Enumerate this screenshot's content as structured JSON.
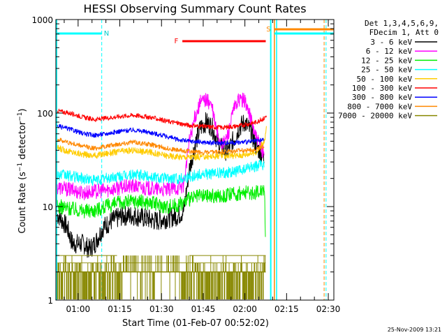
{
  "chart_data": {
    "type": "line",
    "title": "HESSI Observing Summary Count Rates",
    "xlabel": "Start Time (01-Feb-07 00:52:02)",
    "ylabel": "Count Rate (s⁻¹ detector⁻¹)",
    "y_scale": "log",
    "ylim": [
      1,
      1000
    ],
    "xlim_minutes": [
      52,
      152
    ],
    "x_ticks": [
      {
        "label": "01:00",
        "min": 60
      },
      {
        "label": "01:15",
        "min": 75
      },
      {
        "label": "01:30",
        "min": 90
      },
      {
        "label": "01:45",
        "min": 105
      },
      {
        "label": "02:00",
        "min": 120
      },
      {
        "label": "02:15",
        "min": 135
      },
      {
        "label": "02:30",
        "min": 150
      }
    ],
    "y_ticks": [
      {
        "label": "1",
        "v": 1
      },
      {
        "label": "10",
        "v": 10
      },
      {
        "label": "100",
        "v": 100
      },
      {
        "label": "1000",
        "v": 1000
      }
    ],
    "legend_header": [
      "Det 1,3,4,5,6,9,",
      "FDecim 1, Att 0"
    ],
    "series": [
      {
        "name": "3 - 6 keV",
        "color": "#000000",
        "points": [
          [
            53,
            8
          ],
          [
            56,
            6
          ],
          [
            58,
            4
          ],
          [
            62,
            4
          ],
          [
            64,
            3.5
          ],
          [
            66,
            4
          ],
          [
            69,
            6
          ],
          [
            72,
            7
          ],
          [
            76,
            8
          ],
          [
            80,
            8
          ],
          [
            84,
            7.5
          ],
          [
            88,
            7
          ],
          [
            92,
            7.5
          ],
          [
            96,
            8
          ],
          [
            98,
            9
          ],
          [
            100,
            25
          ],
          [
            102,
            45
          ],
          [
            104,
            70
          ],
          [
            106,
            80
          ],
          [
            108,
            72
          ],
          [
            110,
            52
          ],
          [
            112,
            40
          ],
          [
            114,
            40
          ],
          [
            116,
            52
          ],
          [
            118,
            70
          ],
          [
            120,
            80
          ],
          [
            122,
            64
          ],
          [
            124,
            45
          ],
          [
            126,
            36
          ],
          [
            127,
            32
          ]
        ]
      },
      {
        "name": "6 - 12 keV",
        "color": "#ff00ff",
        "points": [
          [
            53,
            16
          ],
          [
            58,
            15
          ],
          [
            62,
            14
          ],
          [
            66,
            14.5
          ],
          [
            70,
            15
          ],
          [
            75,
            16
          ],
          [
            80,
            16.5
          ],
          [
            86,
            15.5
          ],
          [
            92,
            15
          ],
          [
            96,
            16
          ],
          [
            98,
            17
          ],
          [
            100,
            50
          ],
          [
            102,
            90
          ],
          [
            104,
            130
          ],
          [
            106,
            140
          ],
          [
            108,
            120
          ],
          [
            110,
            60
          ],
          [
            112,
            45
          ],
          [
            114,
            60
          ],
          [
            116,
            110
          ],
          [
            118,
            140
          ],
          [
            120,
            135
          ],
          [
            122,
            90
          ],
          [
            124,
            55
          ],
          [
            126,
            40
          ],
          [
            127,
            38
          ]
        ]
      },
      {
        "name": "12 - 25 keV",
        "color": "#00ee00",
        "points": [
          [
            53,
            10
          ],
          [
            58,
            9.5
          ],
          [
            62,
            9
          ],
          [
            66,
            9.2
          ],
          [
            70,
            10
          ],
          [
            75,
            11
          ],
          [
            80,
            11.5
          ],
          [
            86,
            11
          ],
          [
            92,
            10
          ],
          [
            96,
            10.5
          ],
          [
            100,
            12
          ],
          [
            104,
            13
          ],
          [
            108,
            13
          ],
          [
            112,
            13
          ],
          [
            116,
            13.5
          ],
          [
            120,
            14
          ],
          [
            124,
            14
          ],
          [
            127,
            16
          ],
          [
            127.5,
            4
          ]
        ]
      },
      {
        "name": "25 - 50 keV",
        "color": "#00ffff",
        "points": [
          [
            53,
            22
          ],
          [
            58,
            21
          ],
          [
            62,
            20
          ],
          [
            66,
            19
          ],
          [
            70,
            20
          ],
          [
            75,
            21
          ],
          [
            80,
            22
          ],
          [
            86,
            21
          ],
          [
            92,
            20
          ],
          [
            96,
            20
          ],
          [
            100,
            21
          ],
          [
            104,
            22
          ],
          [
            108,
            22.5
          ],
          [
            112,
            23
          ],
          [
            116,
            23.5
          ],
          [
            120,
            25
          ],
          [
            124,
            27
          ],
          [
            127,
            28
          ]
        ]
      },
      {
        "name": "50 - 100 keV",
        "color": "#ffcc00",
        "points": [
          [
            53,
            42
          ],
          [
            58,
            38
          ],
          [
            62,
            36
          ],
          [
            66,
            35
          ],
          [
            70,
            37
          ],
          [
            75,
            39
          ],
          [
            80,
            40
          ],
          [
            86,
            38
          ],
          [
            92,
            35
          ],
          [
            96,
            34
          ],
          [
            100,
            34
          ],
          [
            104,
            34
          ],
          [
            108,
            34.5
          ],
          [
            112,
            35
          ],
          [
            116,
            35
          ],
          [
            120,
            36
          ],
          [
            124,
            38
          ],
          [
            127,
            50
          ],
          [
            127.8,
            70
          ]
        ]
      },
      {
        "name": "100 - 300 keV",
        "color": "#ff0000",
        "points": [
          [
            53,
            105
          ],
          [
            58,
            98
          ],
          [
            62,
            90
          ],
          [
            66,
            85
          ],
          [
            70,
            88
          ],
          [
            75,
            92
          ],
          [
            80,
            95
          ],
          [
            86,
            90
          ],
          [
            92,
            82
          ],
          [
            96,
            78
          ],
          [
            100,
            74
          ],
          [
            104,
            72
          ],
          [
            108,
            71
          ],
          [
            112,
            70
          ],
          [
            116,
            72
          ],
          [
            120,
            75
          ],
          [
            124,
            80
          ],
          [
            127,
            88
          ],
          [
            127.8,
            95
          ]
        ]
      },
      {
        "name": "300 - 800 keV",
        "color": "#0000ff",
        "points": [
          [
            53,
            72
          ],
          [
            58,
            66
          ],
          [
            62,
            60
          ],
          [
            66,
            58
          ],
          [
            70,
            60
          ],
          [
            75,
            64
          ],
          [
            80,
            66
          ],
          [
            86,
            62
          ],
          [
            92,
            56
          ],
          [
            96,
            52
          ],
          [
            100,
            50
          ],
          [
            104,
            49
          ],
          [
            108,
            48
          ],
          [
            112,
            48
          ],
          [
            116,
            48.5
          ],
          [
            120,
            49
          ],
          [
            124,
            50
          ],
          [
            127,
            52
          ]
        ]
      },
      {
        "name": "800 - 7000 keV",
        "color": "#ff8800",
        "points": [
          [
            53,
            52
          ],
          [
            58,
            47
          ],
          [
            62,
            44
          ],
          [
            66,
            42
          ],
          [
            70,
            44
          ],
          [
            75,
            47
          ],
          [
            80,
            49
          ],
          [
            86,
            46
          ],
          [
            92,
            42
          ],
          [
            96,
            40
          ],
          [
            100,
            39
          ],
          [
            104,
            38
          ],
          [
            108,
            38
          ],
          [
            112,
            38.5
          ],
          [
            116,
            39
          ],
          [
            120,
            40
          ],
          [
            124,
            41
          ],
          [
            127,
            44
          ]
        ]
      },
      {
        "name": "7000 - 20000 keV",
        "color": "#888800",
        "points": [
          [
            53,
            2.5
          ],
          [
            127,
            2.5
          ]
        ]
      }
    ],
    "labels": [
      {
        "text": "N",
        "color": "#00cccc"
      },
      {
        "text": "F",
        "color": "#ff0000"
      },
      {
        "text": "S",
        "color": "#ff8800"
      }
    ],
    "footer_date": "25-Nov-2009 13:21",
    "axis_color": "#000000",
    "night_color": "#00ffff",
    "flare_color": "#ff0000",
    "saa_color": "#ff8800"
  }
}
